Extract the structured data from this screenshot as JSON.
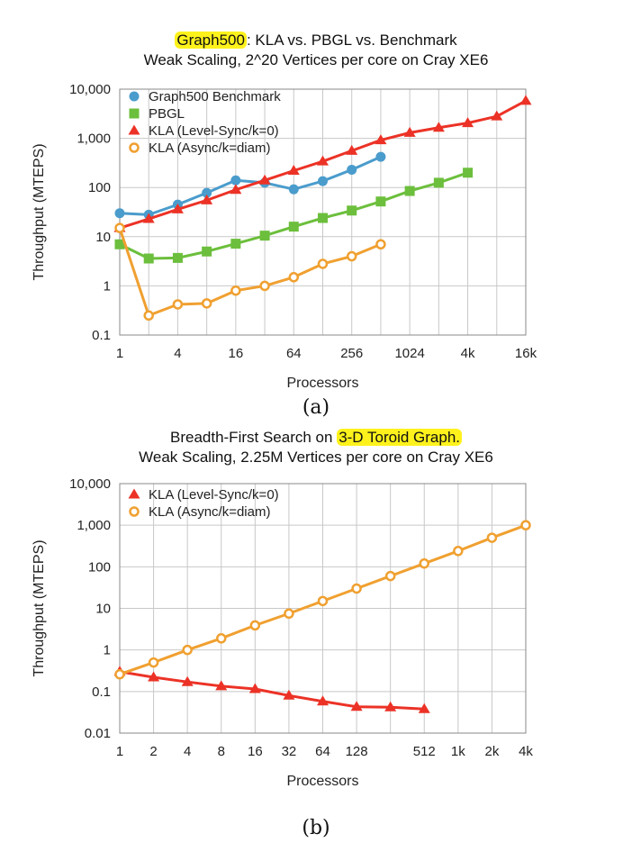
{
  "chart_data": [
    {
      "type": "line",
      "title_highlight": "Graph500",
      "title_rest": ": KLA vs. PBGL vs. Benchmark",
      "subtitle": "Weak Scaling, 2^20 Vertices per core on Cray XE6",
      "xlabel": "Processors",
      "ylabel": "Throughput (MTEPS)",
      "yscale": "log",
      "ylim": [
        0.1,
        10000
      ],
      "xscale": "log2",
      "xlim": [
        1,
        16384
      ],
      "x_ticks": [
        1,
        4,
        16,
        64,
        256,
        1024,
        4096,
        16384
      ],
      "x_tick_labels": [
        "1",
        "4",
        "16",
        "64",
        "256",
        "1024",
        "4k",
        "16k"
      ],
      "y_ticks": [
        0.1,
        1,
        10,
        100,
        1000,
        10000
      ],
      "y_tick_labels": [
        "0.1",
        "1",
        "10",
        "100",
        "1,000",
        "10,000"
      ],
      "grid": true,
      "legend_position": "top-left",
      "caption": "(a)",
      "series": [
        {
          "name": "Graph500 Benchmark",
          "color": "#4a9ccc",
          "marker": "circle",
          "x": [
            1,
            2,
            4,
            8,
            16,
            32,
            64,
            128,
            256,
            512
          ],
          "y": [
            30,
            28,
            45,
            78,
            140,
            125,
            92,
            135,
            230,
            420
          ]
        },
        {
          "name": "PBGL",
          "color": "#6cbf3c",
          "marker": "square",
          "x": [
            1,
            2,
            4,
            8,
            16,
            32,
            64,
            128,
            256,
            512,
            1024,
            2048,
            4096
          ],
          "y": [
            7,
            3.6,
            3.7,
            5,
            7.2,
            10.5,
            16,
            24,
            34,
            52,
            85,
            125,
            200
          ]
        },
        {
          "name": "KLA (Level-Sync/k=0)",
          "color": "#ec3226",
          "marker": "triangle",
          "x": [
            1,
            2,
            4,
            8,
            16,
            32,
            64,
            128,
            256,
            512,
            1024,
            2048,
            4096,
            8192,
            16384
          ],
          "y": [
            15,
            23,
            36,
            55,
            90,
            140,
            220,
            340,
            560,
            920,
            1300,
            1650,
            2050,
            2800,
            5800
          ]
        },
        {
          "name": "KLA (Async/k=diam)",
          "color": "#f0a030",
          "marker": "open-circle",
          "x": [
            1,
            2,
            4,
            8,
            16,
            32,
            64,
            128,
            256,
            512
          ],
          "y": [
            15,
            0.25,
            0.42,
            0.44,
            0.8,
            1.0,
            1.5,
            2.8,
            4.0,
            7.0
          ]
        }
      ]
    },
    {
      "type": "line",
      "title_pre": "Breadth-First Search on ",
      "title_highlight": "3-D Toroid Graph.",
      "subtitle": "Weak Scaling, 2.25M Vertices per core on Cray XE6",
      "xlabel": "Processors",
      "ylabel": "Throughput (MTEPS)",
      "yscale": "log",
      "ylim": [
        0.01,
        10000
      ],
      "xscale": "log2",
      "xlim": [
        1,
        4096
      ],
      "x_ticks": [
        1,
        2,
        4,
        8,
        16,
        32,
        64,
        128,
        256,
        512,
        1024,
        2048,
        4096
      ],
      "x_tick_labels": [
        "1",
        "2",
        "4",
        "8",
        "16",
        "32",
        "64",
        "128",
        "",
        "512",
        "1k",
        "2k",
        "4k"
      ],
      "y_ticks": [
        0.01,
        0.1,
        1,
        10,
        100,
        1000,
        10000
      ],
      "y_tick_labels": [
        "0.01",
        "0.1",
        "1",
        "10",
        "100",
        "1,000",
        "10,000"
      ],
      "grid": true,
      "legend_position": "top-left",
      "caption": "(b)",
      "series": [
        {
          "name": "KLA (Level-Sync/k=0)",
          "color": "#ec3226",
          "marker": "triangle",
          "x": [
            1,
            2,
            4,
            8,
            16,
            32,
            64,
            128,
            256,
            512
          ],
          "y": [
            0.3,
            0.22,
            0.17,
            0.135,
            0.115,
            0.08,
            0.058,
            0.043,
            0.042,
            0.038
          ]
        },
        {
          "name": "KLA (Async/k=diam)",
          "color": "#f0a030",
          "marker": "open-circle",
          "x": [
            1,
            2,
            4,
            8,
            16,
            32,
            64,
            128,
            256,
            512,
            1024,
            2048,
            4096
          ],
          "y": [
            0.26,
            0.5,
            1.0,
            1.9,
            3.9,
            7.5,
            15,
            30,
            60,
            120,
            240,
            500,
            1000
          ]
        }
      ]
    }
  ]
}
